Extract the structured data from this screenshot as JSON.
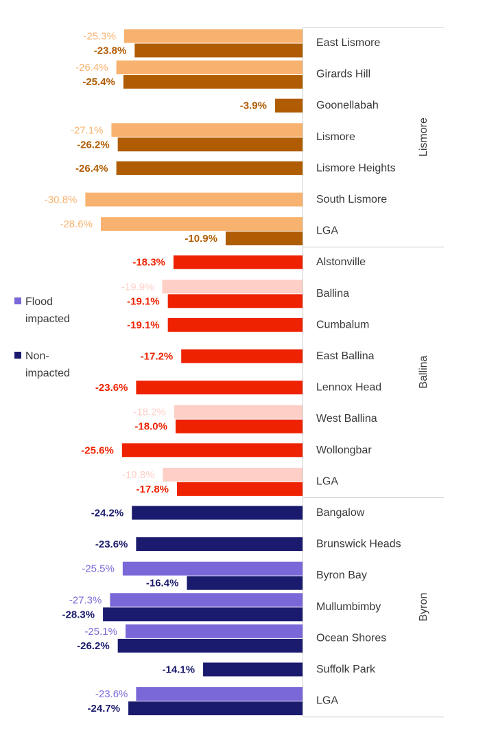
{
  "chart_data": {
    "type": "bar",
    "orientation": "horizontal",
    "title": "",
    "xlabel": "",
    "ylabel": "",
    "xlim": [
      -32,
      0
    ],
    "grid": false,
    "legend": {
      "placement": "left",
      "entries": [
        {
          "key": "flood",
          "label_lines": [
            "Flood",
            "impacted"
          ],
          "color": "#7B68D8"
        },
        {
          "key": "nonf",
          "label_lines": [
            "Non-",
            "impacted"
          ],
          "color": "#1A1A6E"
        }
      ]
    },
    "groups": [
      {
        "name": "Lismore",
        "colors": {
          "flood": "#F8B26F",
          "nonf": "#B05C03"
        },
        "suburbs": [
          {
            "name": "East Lismore",
            "flood": -25.3,
            "nonf": -23.8,
            "flood_label": "-25.3%",
            "nonf_label": "-23.8%"
          },
          {
            "name": "Girards Hill",
            "flood": -26.4,
            "nonf": -25.4,
            "flood_label": "-26.4%",
            "nonf_label": "-25.4%"
          },
          {
            "name": "Goonellabah",
            "flood": null,
            "nonf": -3.9,
            "flood_label": null,
            "nonf_label": "-3.9%"
          },
          {
            "name": "Lismore",
            "flood": -27.1,
            "nonf": -26.2,
            "flood_label": "-27.1%",
            "nonf_label": "-26.2%"
          },
          {
            "name": "Lismore Heights",
            "flood": null,
            "nonf": -26.4,
            "flood_label": null,
            "nonf_label": "-26.4%"
          },
          {
            "name": "South Lismore",
            "flood": -30.8,
            "nonf": null,
            "flood_label": "-30.8%",
            "nonf_label": null
          },
          {
            "name": "LGA",
            "flood": -28.6,
            "nonf": -10.9,
            "flood_label": "-28.6%",
            "nonf_label": "-10.9%"
          }
        ]
      },
      {
        "name": "Ballina",
        "colors": {
          "flood": "#FDCFC7",
          "nonf": "#EE2200"
        },
        "suburbs": [
          {
            "name": "Alstonville",
            "flood": null,
            "nonf": -18.3,
            "flood_label": null,
            "nonf_label": "-18.3%"
          },
          {
            "name": "Ballina",
            "flood": -19.9,
            "nonf": -19.1,
            "flood_label": "-19.9%",
            "nonf_label": "-19.1%"
          },
          {
            "name": "Cumbalum",
            "flood": null,
            "nonf": -19.1,
            "flood_label": null,
            "nonf_label": "-19.1%"
          },
          {
            "name": "East Ballina",
            "flood": null,
            "nonf": -17.2,
            "flood_label": null,
            "nonf_label": "-17.2%"
          },
          {
            "name": "Lennox Head",
            "flood": null,
            "nonf": -23.6,
            "flood_label": null,
            "nonf_label": "-23.6%"
          },
          {
            "name": "West Ballina",
            "flood": -18.2,
            "nonf": -18.0,
            "flood_label": "-18.2%",
            "nonf_label": "-18.0%"
          },
          {
            "name": "Wollongbar",
            "flood": null,
            "nonf": -25.6,
            "flood_label": null,
            "nonf_label": "-25.6%"
          },
          {
            "name": "LGA",
            "flood": -19.8,
            "nonf": -17.8,
            "flood_label": "-19.8%",
            "nonf_label": "-17.8%"
          }
        ]
      },
      {
        "name": "Byron",
        "colors": {
          "flood": "#7B68D8",
          "nonf": "#1A1A6E"
        },
        "suburbs": [
          {
            "name": "Bangalow",
            "flood": null,
            "nonf": -24.2,
            "flood_label": null,
            "nonf_label": "-24.2%"
          },
          {
            "name": "Brunswick Heads",
            "flood": null,
            "nonf": -23.6,
            "flood_label": null,
            "nonf_label": "-23.6%"
          },
          {
            "name": "Byron Bay",
            "flood": -25.5,
            "nonf": -16.4,
            "flood_label": "-25.5%",
            "nonf_label": "-16.4%"
          },
          {
            "name": "Mullumbimby",
            "flood": -27.3,
            "nonf": -28.3,
            "flood_label": "-27.3%",
            "nonf_label": "-28.3%"
          },
          {
            "name": "Ocean Shores",
            "flood": -25.1,
            "nonf": -26.2,
            "flood_label": "-25.1%",
            "nonf_label": "-26.2%"
          },
          {
            "name": "Suffolk Park",
            "flood": null,
            "nonf": -14.1,
            "flood_label": null,
            "nonf_label": "-14.1%"
          },
          {
            "name": "LGA",
            "flood": -23.6,
            "nonf": -24.7,
            "flood_label": "-23.6%",
            "nonf_label": "-24.7%"
          }
        ]
      }
    ]
  }
}
